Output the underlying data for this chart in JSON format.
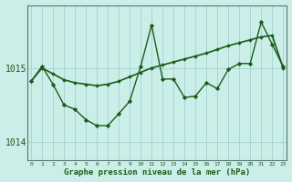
{
  "background_color": "#cceee8",
  "grid_color": "#99cccc",
  "line_color": "#1a5c1a",
  "marker_color": "#1a5c1a",
  "x_labels": [
    "0",
    "1",
    "2",
    "3",
    "4",
    "5",
    "6",
    "7",
    "8",
    "9",
    "10",
    "11",
    "12",
    "13",
    "14",
    "15",
    "16",
    "17",
    "18",
    "19",
    "20",
    "21",
    "22",
    "23"
  ],
  "xlabel": "Graphe pression niveau de la mer (hPa)",
  "ylim": [
    1013.75,
    1015.85
  ],
  "yticks": [
    1014,
    1015
  ],
  "smooth_line": [
    1014.82,
    1015.0,
    1014.92,
    1014.84,
    1014.8,
    1014.78,
    1014.76,
    1014.78,
    1014.82,
    1014.88,
    1014.94,
    1015.0,
    1015.04,
    1015.08,
    1015.12,
    1015.16,
    1015.2,
    1015.25,
    1015.3,
    1015.34,
    1015.38,
    1015.42,
    1015.44,
    1015.0
  ],
  "jagged_line": [
    1014.82,
    1015.02,
    1014.78,
    1014.5,
    1014.44,
    1014.3,
    1014.22,
    1014.22,
    1014.38,
    1014.55,
    1015.02,
    1015.58,
    1014.85,
    1014.85,
    1014.6,
    1014.62,
    1014.8,
    1014.72,
    1014.98,
    1015.06,
    1015.06,
    1015.62,
    1015.32,
    1015.02
  ]
}
